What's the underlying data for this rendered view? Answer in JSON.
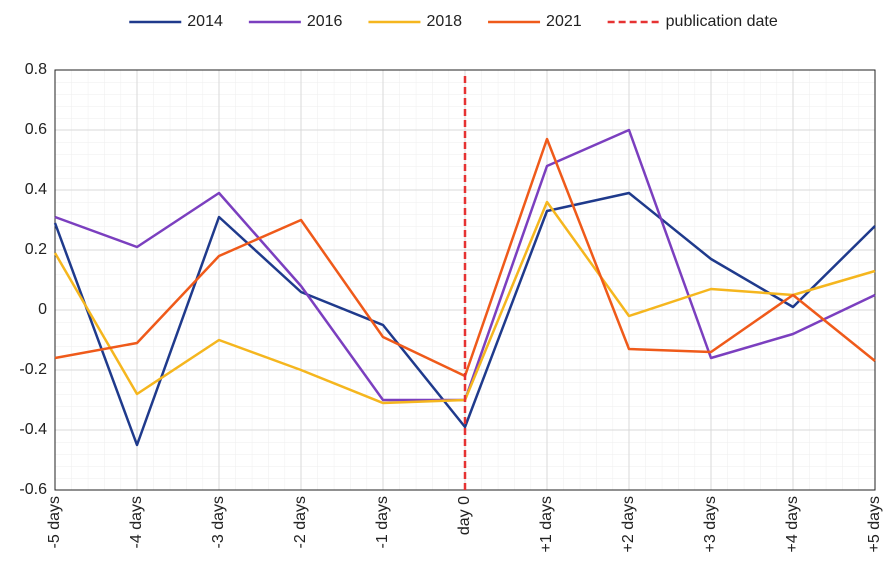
{
  "chart_data": {
    "type": "line",
    "categories": [
      "-5 days",
      "-4 days",
      "-3 days",
      "-2 days",
      "-1 days",
      "day 0",
      "+1 days",
      "+2 days",
      "+3 days",
      "+4 days",
      "+5 days"
    ],
    "series": [
      {
        "name": "2014",
        "color": "#1f3a8c",
        "values": [
          0.29,
          -0.45,
          0.31,
          0.06,
          -0.05,
          -0.39,
          0.33,
          0.39,
          0.17,
          0.01,
          0.28
        ]
      },
      {
        "name": "2016",
        "color": "#7b3fbf",
        "values": [
          0.31,
          0.21,
          0.39,
          0.08,
          -0.3,
          -0.3,
          0.48,
          0.6,
          -0.16,
          -0.08,
          0.05
        ]
      },
      {
        "name": "2018",
        "color": "#f5b61e",
        "values": [
          0.19,
          -0.28,
          -0.1,
          -0.2,
          -0.31,
          -0.3,
          0.36,
          -0.02,
          0.07,
          0.05,
          0.13
        ]
      },
      {
        "name": "2021",
        "color": "#ef5a1a",
        "values": [
          -0.16,
          -0.11,
          0.18,
          0.3,
          -0.09,
          -0.22,
          0.57,
          -0.13,
          -0.14,
          0.05,
          -0.17
        ]
      }
    ],
    "vline": {
      "name": "publication date",
      "category": "day 0",
      "color": "#e63232"
    },
    "ylim": [
      -0.6,
      0.8
    ],
    "yticks": [
      -0.6,
      -0.4,
      -0.2,
      0,
      0.2,
      0.4,
      0.6,
      0.8
    ],
    "grid": true,
    "legend": "top"
  }
}
